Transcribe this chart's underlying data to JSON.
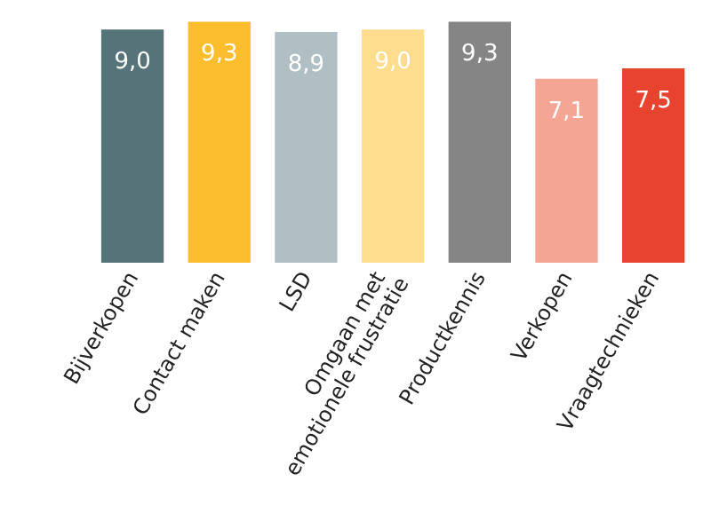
{
  "chart_data": {
    "type": "bar",
    "categories": [
      "Bijverkopen",
      "Contact maken",
      "LSD",
      "Omgaan met emotionele frustratie",
      "Productkennis",
      "Verkopen",
      "Vraagtechnieken"
    ],
    "values": [
      9.0,
      9.3,
      8.9,
      9.0,
      9.3,
      7.1,
      7.5
    ],
    "value_labels": [
      "9,0",
      "9,3",
      "8,9",
      "9,0",
      "9,3",
      "7,1",
      "7,5"
    ],
    "colors": [
      "#56737a",
      "#fcbe2c",
      "#b0bfc4",
      "#fedd8e",
      "#858585",
      "#f4a594",
      "#e8432f"
    ]
  }
}
